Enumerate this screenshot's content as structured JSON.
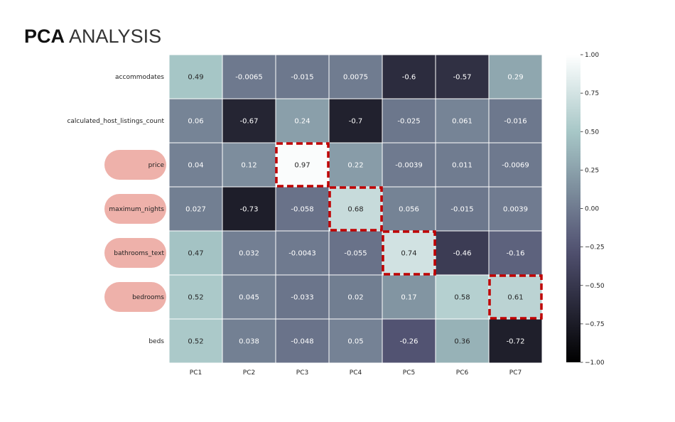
{
  "title": {
    "bold": "PCA",
    "light": "ANALYSIS"
  },
  "colors": {
    "highlight_pill": "#eeb1aa",
    "highlight_border": "#c00000",
    "light_text": "#ffffff",
    "dark_text": "#262626"
  },
  "chart_data": {
    "type": "heatmap",
    "title": "",
    "xlabel": "",
    "ylabel": "",
    "columns": [
      "PC1",
      "PC2",
      "PC3",
      "PC4",
      "PC5",
      "PC6",
      "PC7"
    ],
    "rows": [
      "accommodates",
      "calculated_host_listings_count",
      "price",
      "maximum_nights",
      "bathrooms_text",
      "bedrooms",
      "beds"
    ],
    "values": [
      [
        0.49,
        -0.0065,
        -0.015,
        0.0075,
        -0.6,
        -0.57,
        0.29
      ],
      [
        0.06,
        -0.67,
        0.24,
        -0.7,
        -0.025,
        0.061,
        -0.016
      ],
      [
        0.04,
        0.12,
        0.97,
        0.22,
        -0.0039,
        0.011,
        -0.0069
      ],
      [
        0.027,
        -0.73,
        -0.058,
        0.68,
        0.056,
        -0.015,
        0.0039
      ],
      [
        0.47,
        0.032,
        -0.0043,
        -0.055,
        0.74,
        -0.46,
        -0.16
      ],
      [
        0.52,
        0.045,
        -0.033,
        0.02,
        0.17,
        0.58,
        0.61
      ],
      [
        0.52,
        0.038,
        -0.048,
        0.05,
        -0.26,
        0.36,
        -0.72
      ]
    ],
    "value_labels": [
      [
        "0.49",
        "-0.0065",
        "-0.015",
        "0.0075",
        "-0.6",
        "-0.57",
        "0.29"
      ],
      [
        "0.06",
        "-0.67",
        "0.24",
        "-0.7",
        "-0.025",
        "0.061",
        "-0.016"
      ],
      [
        "0.04",
        "0.12",
        "0.97",
        "0.22",
        "-0.0039",
        "0.011",
        "-0.0069"
      ],
      [
        "0.027",
        "-0.73",
        "-0.058",
        "0.68",
        "0.056",
        "-0.015",
        "0.0039"
      ],
      [
        "0.47",
        "0.032",
        "-0.0043",
        "-0.055",
        "0.74",
        "-0.46",
        "-0.16"
      ],
      [
        "0.52",
        "0.045",
        "-0.033",
        "0.02",
        "0.17",
        "0.58",
        "0.61"
      ],
      [
        "0.52",
        "0.038",
        "-0.048",
        "0.05",
        "-0.26",
        "0.36",
        "-0.72"
      ]
    ],
    "colorbar": {
      "range": [
        -1.0,
        1.0
      ],
      "ticks": [
        1.0,
        0.75,
        0.5,
        0.25,
        0.0,
        -0.25,
        -0.5,
        -0.75,
        -1.0
      ],
      "tick_labels": [
        "1.00",
        "0.75",
        "0.50",
        "0.25",
        "0.00",
        "−0.25",
        "−0.50",
        "−0.75",
        "−1.00"
      ],
      "colormap": "bone",
      "placement": "right"
    },
    "highlighted_rows": [
      "price",
      "maximum_nights",
      "bathrooms_text",
      "bedrooms"
    ],
    "highlighted_cells": [
      {
        "row": "price",
        "column": "PC3"
      },
      {
        "row": "maximum_nights",
        "column": "PC4"
      },
      {
        "row": "bathrooms_text",
        "column": "PC5"
      },
      {
        "row": "bedrooms",
        "column": "PC7"
      }
    ]
  }
}
